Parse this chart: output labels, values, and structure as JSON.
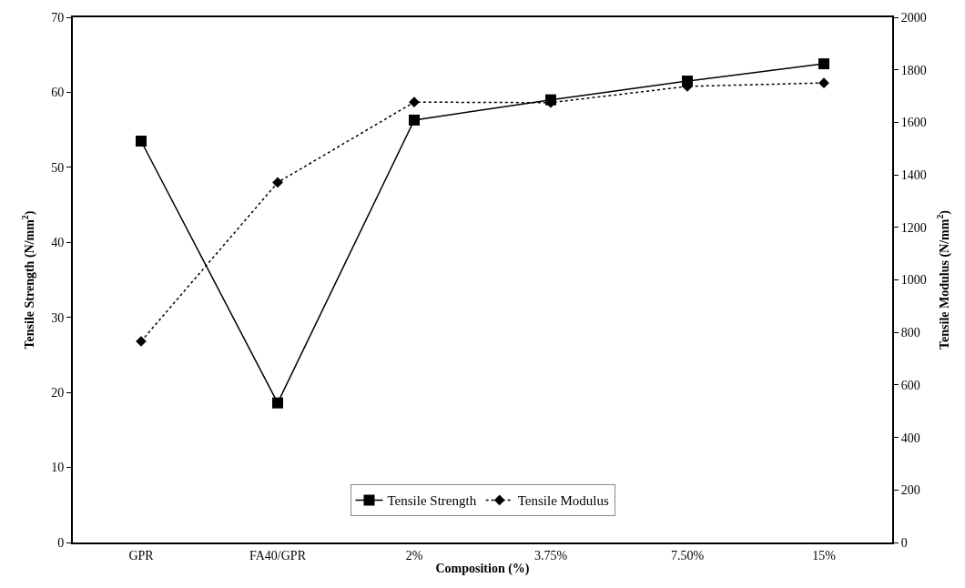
{
  "chart_data": {
    "type": "line",
    "xlabel": "Composition (%)",
    "ylabel": "Tensile Strength (N/mm$^{2}$)",
    "y2label": "Tensile Modulus (N/mm$^{2}$)",
    "categories": [
      "GPR",
      "FA40/GPR",
      "2%",
      "3.75%",
      "7.50%",
      "15%"
    ],
    "series": [
      {
        "name": "Tensile Strength",
        "color": "#000000",
        "marker": "square",
        "line_style": "solid",
        "values": [
          53.5,
          18.6,
          56.3,
          59.0,
          61.5,
          63.8
        ]
      },
      {
        "name": "Tensile Modulus",
        "color": "#000000",
        "marker": "diamond",
        "line_style": "dotted",
        "axis": "y2",
        "values": [
          766,
          1371,
          1677,
          1675,
          1737,
          1750
        ]
      }
    ],
    "ylim": [
      0,
      70
    ],
    "yticks": [
      0,
      10,
      20,
      30,
      40,
      50,
      60,
      70
    ],
    "y2lim": [
      0,
      2000
    ],
    "y2ticks": [
      0,
      200,
      400,
      600,
      800,
      1000,
      1200,
      1400,
      1600,
      1800,
      2000
    ],
    "legend": "bottom"
  }
}
